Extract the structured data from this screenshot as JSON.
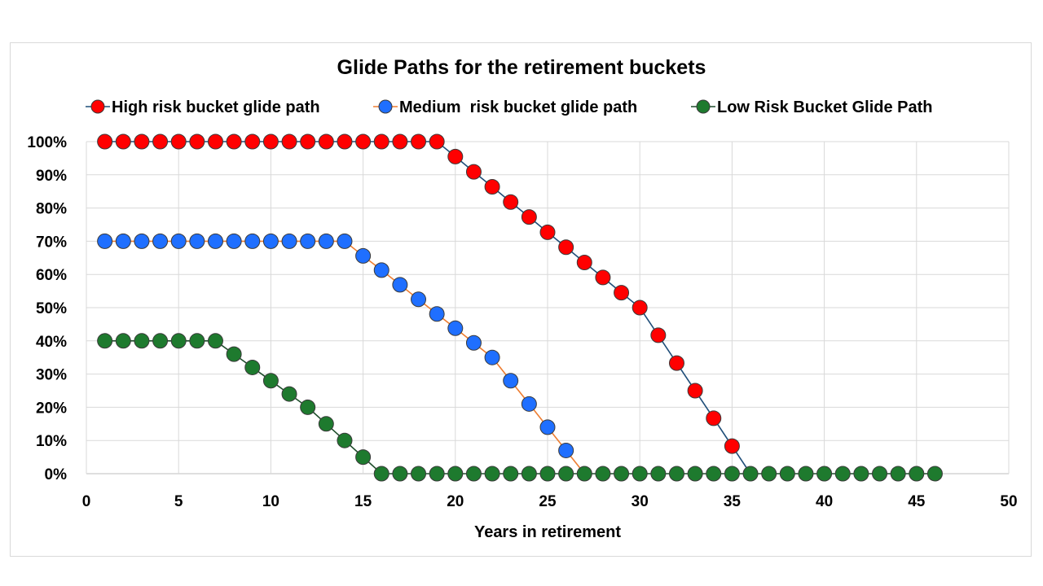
{
  "chart_data": {
    "type": "scatter",
    "title": "Glide Paths for the retirement buckets",
    "xlabel": "Years in retirement",
    "ylabel": "",
    "xlim": [
      0,
      50
    ],
    "ylim": [
      0,
      100
    ],
    "x_ticks": [
      0,
      5,
      10,
      15,
      20,
      25,
      30,
      35,
      40,
      45,
      50
    ],
    "y_ticks": [
      0,
      10,
      20,
      30,
      40,
      50,
      60,
      70,
      80,
      90,
      100
    ],
    "x_tick_labels": [
      "0",
      "5",
      "10",
      "15",
      "20",
      "25",
      "30",
      "35",
      "40",
      "45",
      "50"
    ],
    "y_tick_labels": [
      "0%",
      "10%",
      "20%",
      "30%",
      "40%",
      "50%",
      "60%",
      "70%",
      "80%",
      "90%",
      "100%"
    ],
    "grid": true,
    "legend_position": "top",
    "series": [
      {
        "name": "High risk bucket glide path",
        "marker_color": "#ff0000",
        "line_color": "#1f4e79",
        "points": [
          [
            1,
            100
          ],
          [
            2,
            100
          ],
          [
            3,
            100
          ],
          [
            4,
            100
          ],
          [
            5,
            100
          ],
          [
            6,
            100
          ],
          [
            7,
            100
          ],
          [
            8,
            100
          ],
          [
            9,
            100
          ],
          [
            10,
            100
          ],
          [
            11,
            100
          ],
          [
            12,
            100
          ],
          [
            13,
            100
          ],
          [
            14,
            100
          ],
          [
            15,
            100
          ],
          [
            16,
            100
          ],
          [
            17,
            100
          ],
          [
            18,
            100
          ],
          [
            19,
            100
          ],
          [
            20,
            95.5
          ],
          [
            21,
            90.9
          ],
          [
            22,
            86.4
          ],
          [
            23,
            81.8
          ],
          [
            24,
            77.3
          ],
          [
            25,
            72.7
          ],
          [
            26,
            68.2
          ],
          [
            27,
            63.6
          ],
          [
            28,
            59.1
          ],
          [
            29,
            54.5
          ],
          [
            30,
            50
          ],
          [
            31,
            41.7
          ],
          [
            32,
            33.3
          ],
          [
            33,
            25
          ],
          [
            34,
            16.7
          ],
          [
            35,
            8.3
          ],
          [
            36,
            0
          ]
        ],
        "tail_points": [
          [
            36,
            0
          ]
        ]
      },
      {
        "name": "Medium  risk bucket glide path",
        "marker_color": "#1f6fff",
        "line_color": "#ed7d31",
        "points": [
          [
            1,
            70
          ],
          [
            2,
            70
          ],
          [
            3,
            70
          ],
          [
            4,
            70
          ],
          [
            5,
            70
          ],
          [
            6,
            70
          ],
          [
            7,
            70
          ],
          [
            8,
            70
          ],
          [
            9,
            70
          ],
          [
            10,
            70
          ],
          [
            11,
            70
          ],
          [
            12,
            70
          ],
          [
            13,
            70
          ],
          [
            14,
            70
          ],
          [
            15,
            65.6
          ],
          [
            16,
            61.3
          ],
          [
            17,
            56.9
          ],
          [
            18,
            52.5
          ],
          [
            19,
            48.1
          ],
          [
            20,
            43.8
          ],
          [
            21,
            39.4
          ],
          [
            22,
            35
          ],
          [
            23,
            28
          ],
          [
            24,
            21
          ],
          [
            25,
            14
          ],
          [
            26,
            7
          ],
          [
            27,
            0
          ]
        ],
        "tail_points": [
          [
            27,
            0
          ]
        ]
      },
      {
        "name": "Low Risk Bucket Glide Path",
        "marker_color": "#1e7a2e",
        "line_color": "#1e4d2b",
        "points": [
          [
            1,
            40
          ],
          [
            2,
            40
          ],
          [
            3,
            40
          ],
          [
            4,
            40
          ],
          [
            5,
            40
          ],
          [
            6,
            40
          ],
          [
            7,
            40
          ],
          [
            8,
            36
          ],
          [
            9,
            32
          ],
          [
            10,
            28
          ],
          [
            11,
            24
          ],
          [
            12,
            20
          ],
          [
            13,
            15
          ],
          [
            14,
            10
          ],
          [
            15,
            5
          ],
          [
            16,
            0
          ],
          [
            17,
            0
          ],
          [
            18,
            0
          ],
          [
            19,
            0
          ],
          [
            20,
            0
          ],
          [
            21,
            0
          ],
          [
            22,
            0
          ],
          [
            23,
            0
          ],
          [
            24,
            0
          ],
          [
            25,
            0
          ],
          [
            26,
            0
          ],
          [
            27,
            0
          ],
          [
            28,
            0
          ],
          [
            29,
            0
          ],
          [
            30,
            0
          ],
          [
            31,
            0
          ],
          [
            32,
            0
          ],
          [
            33,
            0
          ],
          [
            34,
            0
          ],
          [
            35,
            0
          ],
          [
            36,
            0
          ],
          [
            37,
            0
          ],
          [
            38,
            0
          ],
          [
            39,
            0
          ],
          [
            40,
            0
          ],
          [
            41,
            0
          ],
          [
            42,
            0
          ],
          [
            43,
            0
          ],
          [
            44,
            0
          ],
          [
            45,
            0
          ],
          [
            46,
            0
          ]
        ],
        "tail_points": []
      }
    ]
  }
}
